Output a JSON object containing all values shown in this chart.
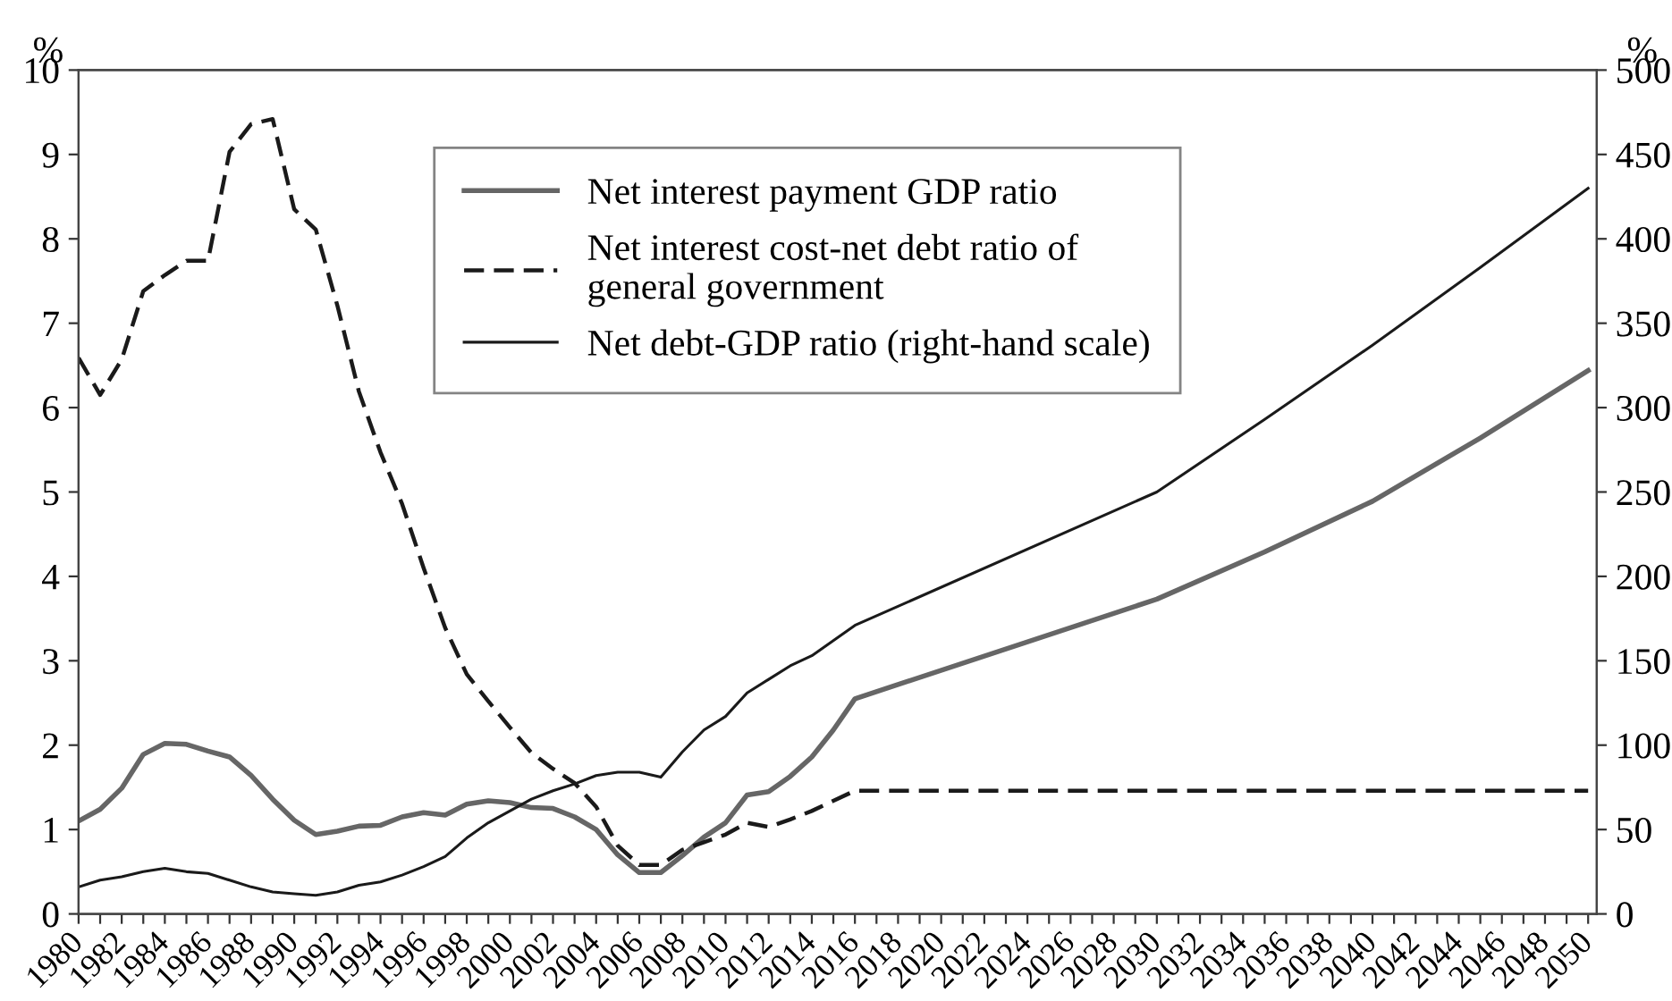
{
  "chart_data": {
    "type": "line",
    "ylabel": "%",
    "y2label": "%",
    "xlim": [
      1980,
      2050.4
    ],
    "ylim": [
      0,
      10
    ],
    "y2lim": [
      0,
      500
    ],
    "xticks": [
      1980,
      {
        "value": 1981,
        "label": null
      },
      1982,
      {
        "value": 1983,
        "label": null
      },
      1984,
      {
        "value": 1985,
        "label": null
      },
      1986,
      {
        "value": 1987,
        "label": null
      },
      1988,
      {
        "value": 1989,
        "label": null
      },
      1990,
      {
        "value": 1991,
        "label": null
      },
      1992,
      {
        "value": 1993,
        "label": null
      },
      1994,
      {
        "value": 1995,
        "label": null
      },
      1996,
      {
        "value": 1997,
        "label": null
      },
      1998,
      {
        "value": 1999,
        "label": null
      },
      2000,
      {
        "value": 2001,
        "label": null
      },
      2002,
      {
        "value": 2003,
        "label": null
      },
      2004,
      {
        "value": 2005,
        "label": null
      },
      2006,
      {
        "value": 2007,
        "label": null
      },
      2008,
      {
        "value": 2009,
        "label": null
      },
      2010,
      {
        "value": 2011,
        "label": null
      },
      2012,
      {
        "value": 2013,
        "label": null
      },
      2014,
      {
        "value": 2015,
        "label": null
      },
      2016,
      {
        "value": 2017,
        "label": null
      },
      2018,
      {
        "value": 2019,
        "label": null
      },
      2020,
      {
        "value": 2021,
        "label": null
      },
      2022,
      {
        "value": 2023,
        "label": null
      },
      2024,
      {
        "value": 2025,
        "label": null
      },
      2026,
      {
        "value": 2027,
        "label": null
      },
      2028,
      {
        "value": 2029,
        "label": null
      },
      2030,
      {
        "value": 2031,
        "label": null
      },
      2032,
      {
        "value": 2033,
        "label": null
      },
      2034,
      {
        "value": 2035,
        "label": null
      },
      2036,
      {
        "value": 2037,
        "label": null
      },
      2038,
      {
        "value": 2039,
        "label": null
      },
      2040,
      {
        "value": 2041,
        "label": null
      },
      2042,
      {
        "value": 2043,
        "label": null
      },
      2044,
      {
        "value": 2045,
        "label": null
      },
      2046,
      {
        "value": 2047,
        "label": null
      },
      2048,
      {
        "value": 2049,
        "label": null
      },
      2050
    ],
    "yticks": [
      0,
      1,
      2,
      3,
      4,
      5,
      6,
      7,
      8,
      9,
      10
    ],
    "y2ticks": [
      0,
      50,
      100,
      150,
      200,
      250,
      300,
      350,
      400,
      450,
      500
    ],
    "grid": false,
    "legend": "top",
    "marker": "none",
    "series": [
      {
        "name": "Net interest payment GDP ratio",
        "color": "#666666",
        "line_style": "solid",
        "x": [
          1980,
          1981,
          1982,
          1983,
          1984,
          1985,
          1986,
          1987,
          1988,
          1989,
          1990,
          1991,
          1992,
          1993,
          1994,
          1995,
          1996,
          1997,
          1998,
          1999,
          2000,
          2001,
          2002,
          2003,
          2004,
          2005,
          2006,
          2007,
          2008,
          2009,
          2010,
          2011,
          2012,
          2013,
          2014,
          2015,
          2016,
          2030,
          2035,
          2040,
          2045,
          2050
        ],
        "values": [
          1.1,
          1.24,
          1.49,
          1.89,
          2.02,
          2.01,
          1.93,
          1.86,
          1.64,
          1.36,
          1.11,
          0.94,
          0.98,
          1.04,
          1.05,
          1.15,
          1.2,
          1.17,
          1.3,
          1.34,
          1.32,
          1.26,
          1.25,
          1.15,
          1.0,
          0.7,
          0.49,
          0.49,
          0.69,
          0.91,
          1.08,
          1.41,
          1.45,
          1.63,
          1.86,
          2.18,
          2.55,
          3.73,
          4.29,
          4.89,
          5.64,
          6.44
        ]
      },
      {
        "name": "Net interest cost-net debt ratio of\ngeneral government",
        "color": "#1a1a1a",
        "line_style": "dashed",
        "x": [
          1980,
          1981,
          1982,
          1983,
          1984,
          1985,
          1986,
          1987,
          1988,
          1989,
          1990,
          1991,
          1992,
          1993,
          1994,
          1995,
          1996,
          1997,
          1998,
          1999,
          2000,
          2001,
          2002,
          2003,
          2004,
          2005,
          2006,
          2007,
          2008,
          2009,
          2010,
          2011,
          2012,
          2013,
          2014,
          2015,
          2016,
          2050
        ],
        "values": [
          6.59,
          6.15,
          6.57,
          7.38,
          7.57,
          7.74,
          7.74,
          9.03,
          9.36,
          9.42,
          8.35,
          8.11,
          7.21,
          6.19,
          5.47,
          4.86,
          4.1,
          3.39,
          2.84,
          2.52,
          2.21,
          1.91,
          1.72,
          1.55,
          1.27,
          0.81,
          0.58,
          0.58,
          0.76,
          0.85,
          0.94,
          1.08,
          1.03,
          1.12,
          1.22,
          1.34,
          1.46,
          1.46
        ]
      },
      {
        "name": "Net debt-GDP ratio (right-hand scale)",
        "color": "#1a1a1a",
        "line_style": "solid",
        "axis": "y2",
        "x": [
          1980,
          1981,
          1982,
          1983,
          1984,
          1985,
          1986,
          1987,
          1988,
          1989,
          1990,
          1991,
          1992,
          1993,
          1994,
          1995,
          1996,
          1997,
          1998,
          1999,
          2000,
          2001,
          2002,
          2003,
          2004,
          2005,
          2006,
          2007,
          2008,
          2009,
          2010,
          2011,
          2012,
          2013,
          2014,
          2015,
          2016,
          2030,
          2035,
          2040,
          2045,
          2050
        ],
        "values": [
          16,
          20,
          22,
          25,
          27,
          25,
          24,
          20,
          16,
          13,
          12,
          11,
          13,
          17,
          19,
          23,
          28,
          34,
          45,
          54,
          61,
          68,
          73,
          77,
          82,
          84,
          84,
          81,
          96,
          109,
          117,
          131,
          139,
          147,
          153,
          162,
          171,
          250,
          293,
          337,
          383,
          430
        ]
      }
    ]
  }
}
